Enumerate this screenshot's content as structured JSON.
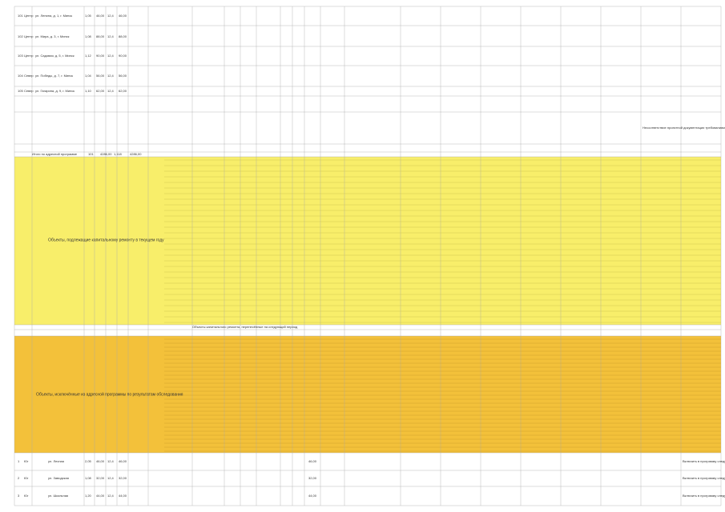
{
  "top_rows": [
    {
      "number": "101",
      "district": "Центр",
      "address": "ул. Ленина, д. 1, г. Минск",
      "values": [
        "1,05",
        "46,00",
        "12,4",
        "46,00"
      ]
    },
    {
      "number": "102",
      "district": "Центр",
      "address": "ул. Мира, д. 3, г. Минск",
      "values": [
        "1,08",
        "88,00",
        "12,4",
        "88,00"
      ]
    },
    {
      "number": "103",
      "district": "Центр",
      "address": "ул. Садовая, д. 5, г. Минск",
      "values": [
        "1,12",
        "90,00",
        "12,4",
        "90,00"
      ]
    },
    {
      "number": "104",
      "district": "Север",
      "address": "ул. Победы, д. 7, г. Минск",
      "values": [
        "1,04",
        "56,00",
        "12,4",
        "56,00"
      ]
    },
    {
      "number": "105",
      "district": "Север",
      "address": "ул. Гагарина, д. 9, г. Минск",
      "values": [
        "1,10",
        "62,00",
        "12,4",
        "62,00"
      ]
    }
  ],
  "summary_row": {
    "label": "Итого по адресной программе",
    "values": [
      "101",
      "4286,00",
      "1,118",
      "4286,00"
    ]
  },
  "yellow_band": {
    "label": "Объекты, подлежащие капитальному ремонту в текущем году"
  },
  "divider": {
    "label": "Объекты капитального ремонта, перенесённые на следующий период"
  },
  "orange_band": {
    "label": "Объекты, исключённые из адресной программы по результатам обследования"
  },
  "bottom_rows": [
    {
      "number": "1",
      "district": "Юг",
      "address": "ул. Лесная",
      "values": [
        "2,05",
        "46,00",
        "12,4",
        "46,00"
      ],
      "total": "46,00"
    },
    {
      "number": "2",
      "district": "Юг",
      "address": "ул. Заводская",
      "values": [
        "1,08",
        "32,00",
        "12,4",
        "32,00"
      ],
      "total": "32,00"
    },
    {
      "number": "3",
      "district": "Юг",
      "address": "ул. Школьная",
      "values": [
        "1,20",
        "44,00",
        "12,4",
        "44,00"
      ],
      "total": "44,00"
    }
  ],
  "note": "Несоответствие проектной документации требованиям технического задания",
  "bottom_note": "Включить в программу следующего года"
}
